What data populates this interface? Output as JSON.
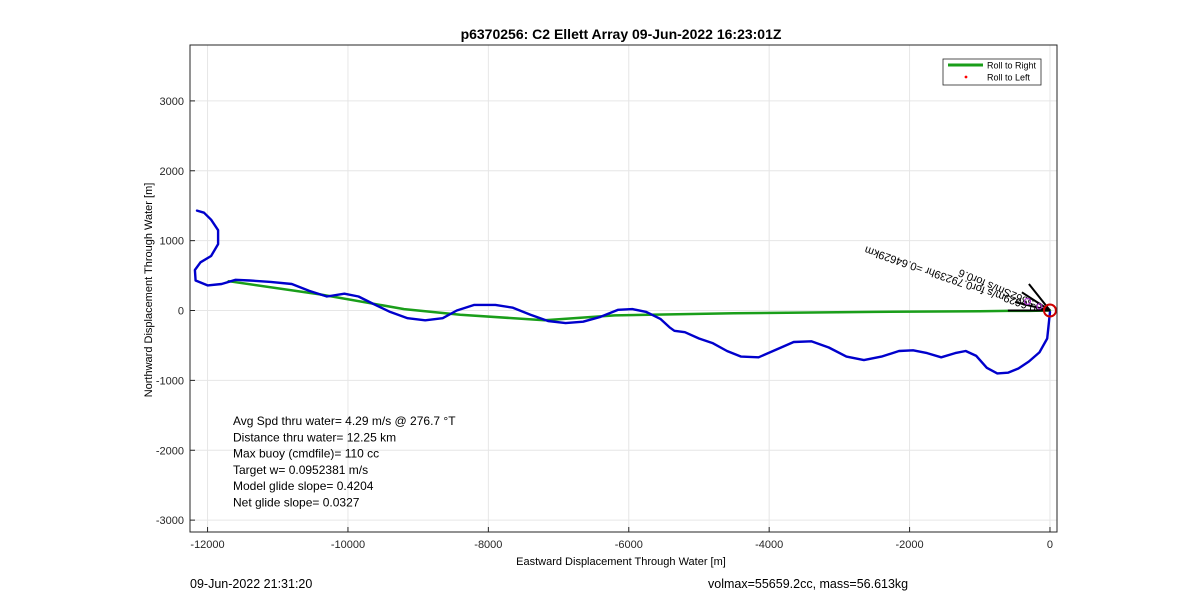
{
  "chart_data": {
    "type": "line",
    "title": "p6370256: C2 Ellett Array 09-Jun-2022 16:23:01Z",
    "xlabel": "Eastward Displacement Through Water [m]",
    "ylabel": "Northward Displacement Through Water [m]",
    "xlim": [
      -12250,
      100
    ],
    "ylim": [
      -3170,
      3800
    ],
    "xticks": [
      -12000,
      -10000,
      -8000,
      -6000,
      -4000,
      -2000,
      0
    ],
    "yticks": [
      -3000,
      -2000,
      -1000,
      0,
      1000,
      2000,
      3000
    ],
    "grid": true,
    "legend_position": "top-right",
    "legend": [
      {
        "label": "Roll to Right",
        "color": "#1a9e1a",
        "style": "line"
      },
      {
        "label": "Roll to Left",
        "color": "#ff0000",
        "style": "marker"
      }
    ],
    "series": [
      {
        "name": "Roll to Right",
        "color": "#1a9e1a",
        "x": [
          -11700,
          -10400,
          -9200,
          -8400,
          -7200,
          -6200,
          -4500,
          -2500,
          -1000,
          -600,
          -300,
          0
        ],
        "y": [
          420,
          230,
          20,
          -60,
          -140,
          -70,
          -40,
          -20,
          -10,
          -5,
          -5,
          0
        ]
      },
      {
        "name": "",
        "color": "#0000cc",
        "x": [
          -12150,
          -12050,
          -11950,
          -11850,
          -11850,
          -11950,
          -12100,
          -12180,
          -12170,
          -12000,
          -11800,
          -11600,
          -11400,
          -11100,
          -10800,
          -10550,
          -10300,
          -10050,
          -9850,
          -9650,
          -9400,
          -9150,
          -8900,
          -8650,
          -8450,
          -8200,
          -7900,
          -7650,
          -7400,
          -7150,
          -6900,
          -6650,
          -6400,
          -6150,
          -5950,
          -5750,
          -5550,
          -5420,
          -5350,
          -5200,
          -5000,
          -4800,
          -4600,
          -4400,
          -4150,
          -3900,
          -3650,
          -3400,
          -3150,
          -2900,
          -2650,
          -2400,
          -2150,
          -1950,
          -1750,
          -1550,
          -1350,
          -1200,
          -1050,
          -900,
          -750,
          -600,
          -450,
          -300,
          -150,
          -40,
          0
        ],
        "y": [
          1430,
          1400,
          1300,
          1150,
          950,
          780,
          690,
          580,
          430,
          360,
          380,
          440,
          430,
          410,
          380,
          280,
          200,
          240,
          200,
          100,
          -20,
          -110,
          -140,
          -110,
          0,
          80,
          80,
          40,
          -60,
          -150,
          -180,
          -160,
          -90,
          10,
          20,
          -20,
          -120,
          -240,
          -290,
          -310,
          -400,
          -470,
          -580,
          -660,
          -670,
          -560,
          -450,
          -440,
          -530,
          -660,
          -710,
          -660,
          -580,
          -570,
          -610,
          -670,
          -610,
          -580,
          -650,
          -820,
          -900,
          -890,
          -830,
          -730,
          -600,
          -400,
          -20
        ]
      }
    ],
    "mark_color": "#cc0000",
    "annotations": {
      "info_lines": [
        "Avg Spd thru water=  4.29 m/s @ 276.7 °T",
        "Distance thru water= 12.25 km",
        "Max buoy (cmdfile)= 110 cc",
        "Target w= 0.0952381 m/s",
        "Model glide slope= 0.4204",
        "Net glide slope= 0.0327"
      ],
      "arrow_label": "0.6629m/s for0.79239hr =0.64629km",
      "overlap_label": "0.5562Sm/s for0.6",
      "marker_color": "#cc0000"
    }
  },
  "footer": {
    "datetime": "09-Jun-2022 21:31:20",
    "volume_mass": "volmax=55659.2cc, mass=56.613kg"
  }
}
